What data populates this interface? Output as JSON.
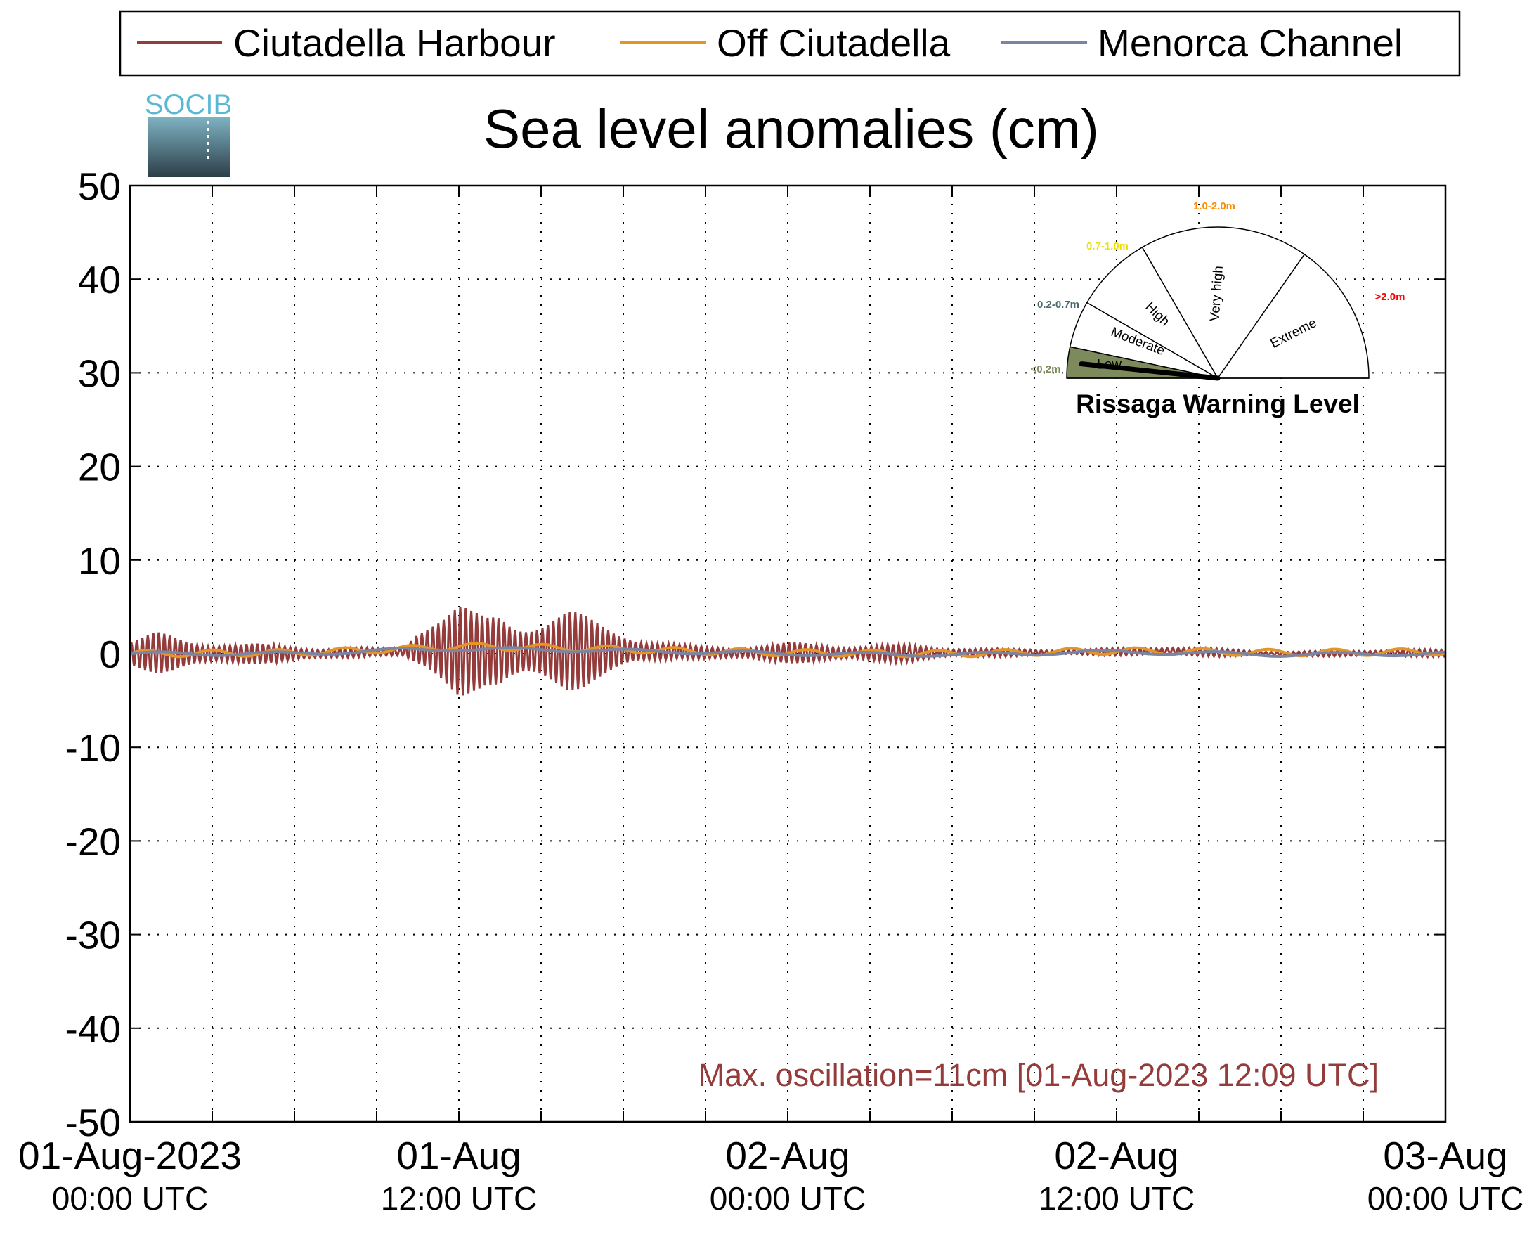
{
  "legend": {
    "entries": [
      {
        "label": "Ciutadella Harbour",
        "color": "#943c3c"
      },
      {
        "label": "Off Ciutadella",
        "color": "#e59427"
      },
      {
        "label": "Menorca Channel",
        "color": "#7a85a3"
      }
    ]
  },
  "logo": {
    "text": "SOCIB",
    "color": "#5bb8d4"
  },
  "title": "Sea level anomalies (cm)",
  "annotation": "Max. oscillation=11cm [01-Aug-2023 12:09 UTC]",
  "warning_gauge": {
    "title": "Rissaga Warning Level",
    "current_level": "Low",
    "sectors": [
      {
        "name": "Low",
        "range": "<0.2m",
        "range_color": "#7d8a5c",
        "fill": "#7d8a5c"
      },
      {
        "name": "Moderate",
        "range": "0.2-0.7m",
        "range_color": "#4a6a73",
        "fill": "#ffffff"
      },
      {
        "name": "High",
        "range": "0.7-1.0m",
        "range_color": "#f2e100",
        "fill": "#ffffff"
      },
      {
        "name": "Very high",
        "range": "1.0-2.0m",
        "range_color": "#ff8c00",
        "fill": "#ffffff"
      },
      {
        "name": "Extreme",
        "range": ">2.0m",
        "range_color": "#ff0000",
        "fill": "#ffffff"
      }
    ]
  },
  "chart_data": {
    "type": "line",
    "title": "Sea level anomalies (cm)",
    "xlabel": "",
    "ylabel": "",
    "ylim": [
      -50,
      50
    ],
    "yticks": [
      -50,
      -40,
      -30,
      -20,
      -10,
      0,
      10,
      20,
      30,
      40,
      50
    ],
    "xlim": [
      "2023-08-01 00:00",
      "2023-08-03 00:00"
    ],
    "xtick_labels": [
      {
        "line1": "01-Aug-2023",
        "line2": "00:00 UTC"
      },
      {
        "line1": "01-Aug",
        "line2": "12:00 UTC"
      },
      {
        "line1": "02-Aug",
        "line2": "00:00 UTC"
      },
      {
        "line1": "02-Aug",
        "line2": "12:00 UTC"
      },
      {
        "line1": "03-Aug",
        "line2": "00:00 UTC"
      }
    ],
    "grid": true,
    "legend_position": "top",
    "series": [
      {
        "name": "Ciutadella Harbour",
        "color": "#943c3c",
        "envelope": {
          "times": [
            "2023-08-01 00:00",
            "2023-08-01 01:00",
            "2023-08-01 02:00",
            "2023-08-01 03:00",
            "2023-08-01 04:00",
            "2023-08-01 05:00",
            "2023-08-01 06:00",
            "2023-08-01 07:00",
            "2023-08-01 08:00",
            "2023-08-01 09:00",
            "2023-08-01 10:00",
            "2023-08-01 10:30",
            "2023-08-01 11:00",
            "2023-08-01 11:30",
            "2023-08-01 12:00",
            "2023-08-01 12:30",
            "2023-08-01 13:00",
            "2023-08-01 13:30",
            "2023-08-01 14:00",
            "2023-08-01 15:00",
            "2023-08-01 16:00",
            "2023-08-01 17:00",
            "2023-08-01 18:00",
            "2023-08-01 19:00",
            "2023-08-01 20:00",
            "2023-08-01 21:00",
            "2023-08-01 22:00",
            "2023-08-02 00:00",
            "2023-08-02 02:00",
            "2023-08-02 04:00",
            "2023-08-02 06:00",
            "2023-08-02 08:00",
            "2023-08-02 10:00",
            "2023-08-02 12:00",
            "2023-08-02 14:00",
            "2023-08-02 16:00",
            "2023-08-02 18:00",
            "2023-08-02 20:00",
            "2023-08-02 22:00",
            "2023-08-03 00:00"
          ],
          "upper": [
            1.5,
            2.3,
            1.8,
            1.5,
            1.2,
            1.0,
            0.9,
            0.8,
            0.7,
            0.6,
            0.8,
            3.5,
            4.8,
            5.2,
            5.6,
            4.5,
            4.0,
            4.8,
            4.2,
            4.5,
            4.8,
            3.6,
            2.8,
            1.6,
            1.0,
            0.8,
            0.9,
            1.2,
            1.1,
            1.0,
            0.8,
            0.5,
            0.5,
            0.6,
            0.9,
            0.5,
            0.3,
            0.3,
            0.6,
            0.4
          ],
          "lower": [
            -1.5,
            -2.1,
            -1.8,
            -1.5,
            -1.2,
            -1.0,
            -0.9,
            -0.8,
            -0.5,
            -0.2,
            -0.4,
            -2.5,
            -3.8,
            -4.5,
            -5.1,
            -4.0,
            -3.5,
            -4.2,
            -3.8,
            -4.0,
            -4.2,
            -3.0,
            -2.2,
            -1.2,
            -0.5,
            -0.6,
            -0.8,
            -1.0,
            -1.0,
            -0.9,
            -0.6,
            -0.3,
            -0.2,
            -0.2,
            -0.3,
            -0.3,
            -0.3,
            -0.3,
            -0.4,
            -0.3
          ]
        }
      },
      {
        "name": "Off Ciutadella",
        "color": "#e59427",
        "times": [
          "2023-08-01 00:00",
          "2023-08-01 06:00",
          "2023-08-01 10:00",
          "2023-08-01 12:00",
          "2023-08-01 16:00",
          "2023-08-01 20:00",
          "2023-08-02 00:00",
          "2023-08-02 06:00",
          "2023-08-02 12:00",
          "2023-08-02 18:00",
          "2023-08-03 00:00"
        ],
        "values": [
          0.0,
          0.1,
          0.5,
          0.8,
          0.6,
          0.3,
          0.1,
          0.0,
          0.3,
          0.1,
          0.2
        ]
      },
      {
        "name": "Menorca Channel",
        "color": "#7a85a3",
        "times": [
          "2023-08-01 00:00",
          "2023-08-01 06:00",
          "2023-08-01 10:00",
          "2023-08-01 12:00",
          "2023-08-01 16:00",
          "2023-08-01 20:00",
          "2023-08-02 00:00",
          "2023-08-02 06:00",
          "2023-08-02 12:00",
          "2023-08-02 18:00",
          "2023-08-03 00:00"
        ],
        "values": [
          0.0,
          0.0,
          0.4,
          0.5,
          0.4,
          0.2,
          0.0,
          -0.1,
          0.2,
          -0.1,
          0.0
        ]
      }
    ]
  }
}
